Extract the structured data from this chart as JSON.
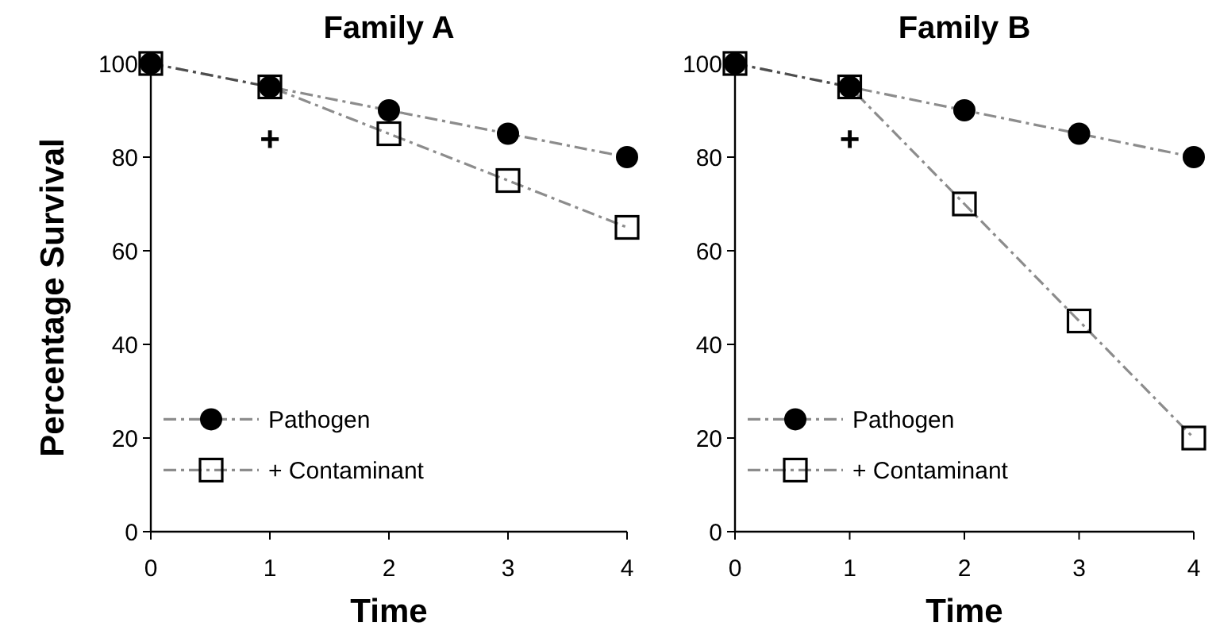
{
  "chart_data": [
    {
      "type": "line",
      "title": "Family A",
      "xlabel": "Time",
      "ylabel": "Percentage Survival",
      "x": [
        0,
        1,
        2,
        3,
        4
      ],
      "xlim": [
        0,
        4
      ],
      "xticks": [
        0,
        1,
        2,
        3,
        4
      ],
      "ylim": [
        0,
        100
      ],
      "yticks": [
        0,
        20,
        40,
        60,
        80,
        100
      ],
      "legend": "bottom left",
      "line_style": "dashed",
      "grid": false,
      "series": [
        {
          "name": "Pathogen",
          "color": "#000000",
          "marker": "circle",
          "values": [
            100,
            95,
            90,
            85,
            80
          ]
        },
        {
          "name": "+ Contaminant",
          "color": "#000000",
          "marker": "square",
          "values": [
            100,
            95,
            85,
            75,
            65
          ]
        }
      ],
      "annotations": [
        "+"
      ]
    },
    {
      "type": "line",
      "title": "Family B",
      "xlabel": "Time",
      "x": [
        0,
        1,
        2,
        3,
        4
      ],
      "xlim": [
        0,
        4
      ],
      "xticks": [
        0,
        1,
        2,
        3,
        4
      ],
      "ylim": [
        0,
        100
      ],
      "yticks": [
        0,
        20,
        40,
        60,
        80,
        100
      ],
      "legend": "bottom left",
      "line_style": "dashed",
      "grid": false,
      "series": [
        {
          "name": "Pathogen",
          "color": "#000000",
          "marker": "circle",
          "values": [
            100,
            95,
            90,
            85,
            80
          ]
        },
        {
          "name": "+ Contaminant",
          "color": "#000000",
          "marker": "square",
          "values": [
            100,
            95,
            70,
            45,
            20
          ]
        }
      ],
      "annotations": [
        "+"
      ]
    }
  ]
}
